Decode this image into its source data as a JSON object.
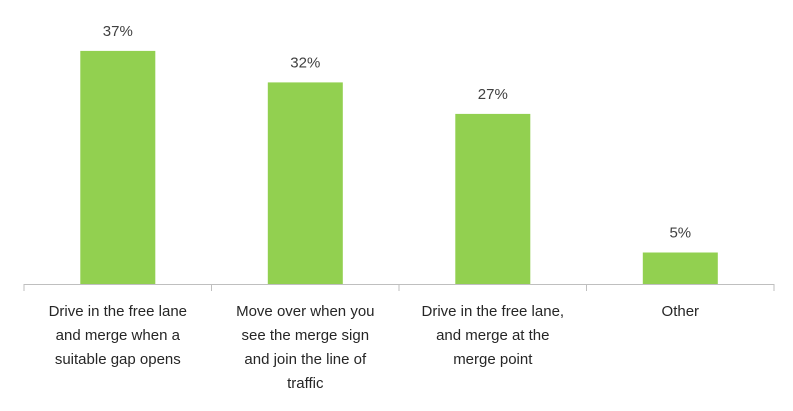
{
  "chart_data": {
    "type": "bar",
    "categories": [
      [
        "Drive in the free lane",
        "and merge when a",
        "suitable gap opens"
      ],
      [
        "Move over when you",
        "see the merge sign",
        "and join the line of",
        "traffic"
      ],
      [
        "Drive in the free lane,",
        "and merge at the",
        "merge point"
      ],
      [
        "Other"
      ]
    ],
    "values": [
      37,
      32,
      27,
      5
    ],
    "value_labels": [
      "37%",
      "32%",
      "27%",
      "5%"
    ],
    "ylim": [
      0,
      40
    ],
    "grid": false,
    "bar_color": "#92d050",
    "axis_color": "#bfbfbf"
  }
}
